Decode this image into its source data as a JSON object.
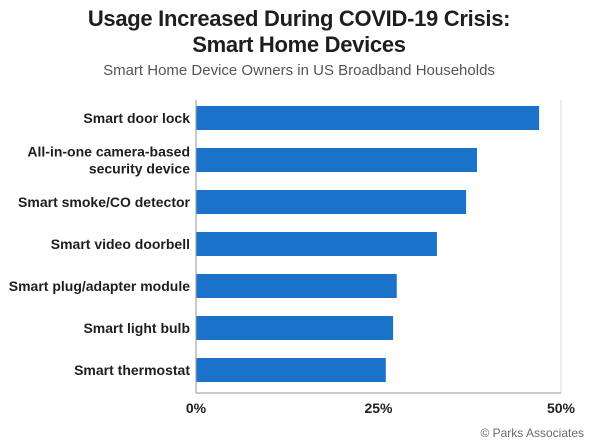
{
  "chart_data": {
    "type": "bar",
    "orientation": "horizontal",
    "title_lines": [
      "Usage Increased During COVID-19 Crisis:",
      "Smart Home Devices"
    ],
    "subtitle": "Smart Home Device Owners in US Broadband Households",
    "categories": [
      [
        "Smart door lock"
      ],
      [
        "All-in-one camera-based",
        "security device"
      ],
      [
        "Smart smoke/CO detector"
      ],
      [
        "Smart video doorbell"
      ],
      [
        "Smart plug/adapter module"
      ],
      [
        "Smart light bulb"
      ],
      [
        "Smart thermostat"
      ]
    ],
    "values": [
      47,
      38.5,
      37,
      33,
      27.5,
      27,
      26
    ],
    "xlim": [
      0,
      50
    ],
    "x_ticks": [
      "0%",
      "25%",
      "50%"
    ],
    "x_tick_values": [
      0,
      25,
      50
    ],
    "grid": true,
    "legend": "none",
    "bar_color": "#1a73c8",
    "source": "© Parks Associates"
  }
}
